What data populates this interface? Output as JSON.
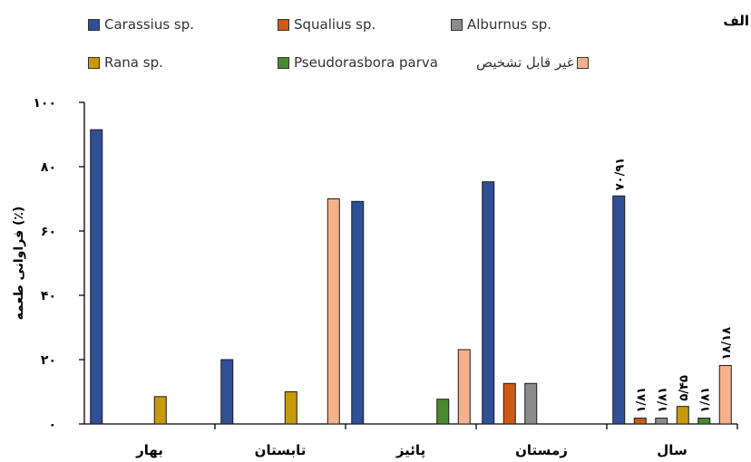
{
  "panel_label": "الف",
  "colors": {
    "Carassius sp.": "#2f4f96",
    "Squalius sp.": "#cf5a15",
    "Alburnus sp.": "#8c8c8c",
    "Rana sp.": "#c79a0c",
    "Pseudorasbora parva": "#4a8a2f",
    "غیر قابل تشخیص": "#f7b18a"
  },
  "chart_data": {
    "type": "bar",
    "title": "",
    "xlabel": "",
    "ylabel": "فراوانی طعمه (٪)",
    "ylim": [
      0,
      100
    ],
    "yticks": [
      0,
      20,
      40,
      60,
      80,
      100
    ],
    "ytick_labels": [
      "۰",
      "۲۰",
      "۴۰",
      "۶۰",
      "۸۰",
      "۱۰۰"
    ],
    "grid": false,
    "legend_position": "top",
    "categories": [
      "بهار",
      "تابستان",
      "پائیز",
      "زمستان",
      "سال"
    ],
    "series": [
      {
        "name": "Carassius sp.",
        "values": [
          91.5,
          20,
          69.2,
          75.3,
          70.91
        ]
      },
      {
        "name": "Squalius sp.",
        "values": [
          0,
          0,
          0,
          12.6,
          1.81
        ]
      },
      {
        "name": "Alburnus sp.",
        "values": [
          0,
          0,
          0,
          12.6,
          1.81
        ]
      },
      {
        "name": "Rana sp.",
        "values": [
          8.5,
          10,
          0,
          0,
          5.45
        ]
      },
      {
        "name": "Pseudorasbora parva",
        "values": [
          0,
          0,
          7.7,
          0,
          1.81
        ]
      },
      {
        "name": "غیر قابل تشخیص",
        "values": [
          0,
          70,
          23.1,
          0,
          18.18
        ]
      }
    ],
    "data_labels": [
      {
        "category": "سال",
        "series": "Carassius sp.",
        "text": "۷۰/۹۱"
      },
      {
        "category": "سال",
        "series": "Squalius sp.",
        "text": "۱/۸۱"
      },
      {
        "category": "سال",
        "series": "Alburnus sp.",
        "text": "۱/۸۱"
      },
      {
        "category": "سال",
        "series": "Rana sp.",
        "text": "۵/۴۵"
      },
      {
        "category": "سال",
        "series": "Pseudorasbora parva",
        "text": "۱/۸۱"
      },
      {
        "category": "سال",
        "series": "غیر قابل تشخیص",
        "text": "۱۸/۱۸"
      }
    ]
  }
}
